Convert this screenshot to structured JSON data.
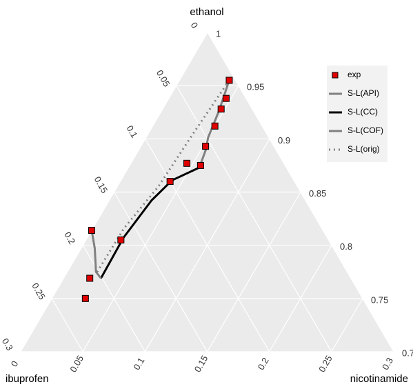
{
  "chart_data": {
    "type": "ternary",
    "axes": [
      {
        "name": "ethanol",
        "lim": [
          0.7,
          1
        ],
        "ticks": [
          0.7,
          0.75,
          0.8,
          0.85,
          0.9,
          0.95,
          1
        ]
      },
      {
        "name": "ibuprofen",
        "lim": [
          0,
          0.3
        ],
        "ticks": [
          0,
          0.05,
          0.1,
          0.15,
          0.2,
          0.25,
          0.3
        ]
      },
      {
        "name": "nicotinamide",
        "lim": [
          0,
          0.3
        ],
        "ticks": [
          0,
          0.05,
          0.1,
          0.15,
          0.2,
          0.25,
          0.3
        ]
      }
    ],
    "grid": true,
    "legend": "right",
    "series": [
      {
        "name": "exp",
        "style": "points",
        "color": "#e00000",
        "ibuprofen": [
          0.005,
          0.016,
          0.025,
          0.038,
          0.055,
          0.068,
          0.078,
          0.1,
          0.167,
          0.186,
          0.21,
          0.223
        ],
        "nicotinamide": [
          0.04,
          0.046,
          0.047,
          0.05,
          0.052,
          0.057,
          0.045,
          0.04,
          0.028,
          0.0,
          0.021,
          0.027
        ]
      },
      {
        "name": "S-L(API)",
        "style": "solid",
        "color": "#808080",
        "ibuprofen": [
          0.005,
          0.027,
          0.049,
          0.057,
          0.07
        ],
        "nicotinamide": [
          0.04,
          0.046,
          0.05,
          0.054,
          0.057
        ]
      },
      {
        "name": "S-L(CC)",
        "style": "solid",
        "color": "#000000",
        "ibuprofen": [
          0.07,
          0.098,
          0.124,
          0.164,
          0.201
        ],
        "nicotinamide": [
          0.057,
          0.041,
          0.034,
          0.029,
          0.03
        ]
      },
      {
        "name": "S-L(COF)",
        "style": "solid",
        "color": "#808080",
        "ibuprofen": [
          0.186,
          0.192,
          0.202,
          0.201
        ],
        "nicotinamide": [
          0.0,
          0.011,
          0.023,
          0.03
        ]
      },
      {
        "name": "S-L(orig)",
        "style": "dotted",
        "color": "#808080",
        "ibuprofen": [
          0.005,
          0.06,
          0.112,
          0.159,
          0.201
        ],
        "nicotinamide": [
          0.04,
          0.036,
          0.033,
          0.025,
          0.024
        ]
      }
    ]
  }
}
